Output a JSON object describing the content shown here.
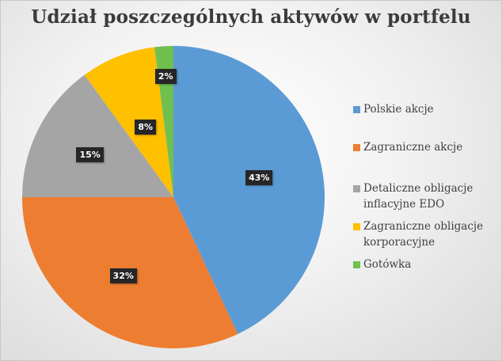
{
  "chart_data": {
    "type": "pie",
    "title": "Udział poszczególnych aktywów w portfelu",
    "categories": [
      "Polskie akcje",
      "Zagraniczne akcje",
      "Detaliczne obligacje inflacyjne EDO",
      "Zagraniczne obligacje korporacyjne",
      "Gotówka"
    ],
    "values": [
      43,
      32,
      15,
      8,
      2
    ],
    "data_labels": [
      "43%",
      "32%",
      "15%",
      "8%",
      "2%"
    ],
    "colors": [
      "#5B9BD5",
      "#ED7D31",
      "#A5A5A5",
      "#FFC000",
      "#70C050"
    ],
    "legend_position": "right",
    "start_angle": "top, clockwise"
  },
  "legend": {
    "items": [
      {
        "line1": "Polskie akcje",
        "line2": ""
      },
      {
        "line1": "Zagraniczne akcje",
        "line2": ""
      },
      {
        "line1": "Detaliczne obligacje",
        "line2": "inflacyjne EDO"
      },
      {
        "line1": "Zagraniczne obligacje",
        "line2": "korporacyjne"
      },
      {
        "line1": "Gotówka",
        "line2": ""
      }
    ]
  }
}
